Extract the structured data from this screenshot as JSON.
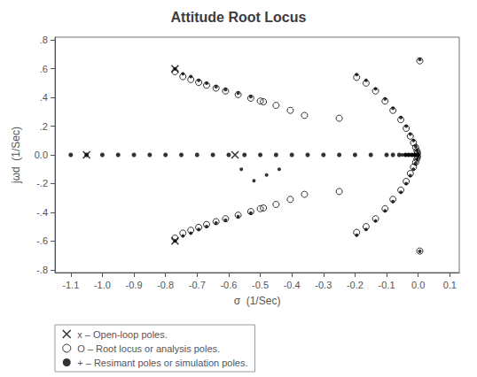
{
  "chart_data": {
    "type": "scatter",
    "title": "Attitude Root Locus",
    "xlabel": "σ  (1/Sec)",
    "ylabel": "jωd  (1/Sec)",
    "xlim": [
      -1.15,
      0.13
    ],
    "ylim": [
      -0.82,
      0.82
    ],
    "xticks": [
      -1.1,
      {
        "value": -1.0,
        "label": "-1.0"
      },
      -0.9,
      -0.8,
      -0.7,
      -0.6,
      -0.5,
      -0.4,
      -0.3,
      -0.2,
      -0.1,
      {
        "value": 0.0,
        "label": "0.0"
      },
      0.1
    ],
    "yticks": [
      {
        "value": -0.8,
        "label": "-.8"
      },
      {
        "value": -0.6,
        "label": "-.6"
      },
      {
        "value": -0.4,
        "label": "-.4"
      },
      {
        "value": -0.2,
        "label": "-.2"
      },
      {
        "value": 0.0,
        "label": "0.0"
      },
      {
        "value": 0.2,
        "label": ".2"
      },
      {
        "value": 0.4,
        "label": ".4"
      },
      {
        "value": 0.6,
        "label": ".6"
      },
      {
        "value": 0.8,
        "label": ".8"
      }
    ],
    "grid": false,
    "legend": "lower left",
    "series": [
      {
        "name": "x – Open-loop poles.",
        "marker": "x",
        "color": "#000000",
        "x": [
          -1.05,
          -0.77,
          -0.58,
          -0.77
        ],
        "values": [
          0.0,
          0.6,
          0.0,
          -0.6
        ]
      },
      {
        "name": "O – Root locus or analysis poles.",
        "marker": "open_circle",
        "color": "#000000",
        "x": [
          -0.77,
          -0.745,
          -0.72,
          -0.695,
          -0.67,
          -0.64,
          -0.61,
          -0.57,
          -0.53,
          -0.49,
          -0.45,
          -0.405,
          -0.36,
          -0.5,
          -0.25,
          -0.77,
          -0.745,
          -0.72,
          -0.695,
          -0.67,
          -0.64,
          -0.61,
          -0.57,
          -0.53,
          -0.49,
          -0.45,
          -0.405,
          -0.36,
          -0.5,
          -0.25,
          -0.195,
          -0.165,
          -0.135,
          -0.105,
          -0.08,
          -0.055,
          -0.038,
          -0.025,
          -0.015,
          -0.008,
          -0.004,
          -0.002,
          0.005,
          -0.195,
          -0.165,
          -0.135,
          -0.105,
          -0.08,
          -0.055,
          -0.038,
          -0.025,
          -0.015,
          -0.008,
          -0.004,
          -0.002,
          0.005
        ],
        "values": [
          0.58,
          0.545,
          0.525,
          0.505,
          0.485,
          0.465,
          0.445,
          0.42,
          0.395,
          0.37,
          0.345,
          0.31,
          0.275,
          0.375,
          0.255,
          -0.58,
          -0.545,
          -0.525,
          -0.505,
          -0.485,
          -0.465,
          -0.445,
          -0.42,
          -0.395,
          -0.37,
          -0.345,
          -0.31,
          -0.275,
          -0.375,
          -0.255,
          0.54,
          0.5,
          0.445,
          0.375,
          0.31,
          0.245,
          0.185,
          0.13,
          0.085,
          0.052,
          0.028,
          0.012,
          0.655,
          -0.54,
          -0.5,
          -0.445,
          -0.375,
          -0.31,
          -0.245,
          -0.185,
          -0.13,
          -0.085,
          -0.052,
          -0.028,
          -0.012,
          -0.67
        ]
      },
      {
        "name": "+ – Resimant poles or simulation poles.",
        "marker": "dot",
        "color": "#000000",
        "x": [
          -0.05,
          -0.04,
          -0.03,
          -0.02,
          -0.015,
          -0.01,
          -0.008,
          -0.005,
          -0.003,
          -0.001,
          0.0,
          -0.195,
          -0.165,
          -0.135,
          -0.105,
          -0.08,
          -0.055,
          -0.038,
          -0.025,
          -0.015,
          -0.008,
          -0.004,
          -0.001,
          -0.77,
          -0.745,
          -0.72,
          -0.695,
          -0.67,
          -0.64,
          -0.61,
          -0.57,
          -0.53,
          0.005,
          -0.195,
          -0.165,
          -0.135,
          -0.105,
          -0.08,
          -0.055,
          -0.038,
          -0.025,
          -0.015,
          -0.008,
          -0.004,
          -0.001,
          -0.77,
          -0.745,
          -0.72,
          -0.695,
          -0.67,
          -0.64,
          -0.61,
          -0.57,
          -0.53,
          0.005,
          -0.56,
          -0.52,
          -0.48,
          -0.44
        ],
        "values": [
          0.0,
          0.0,
          0.0,
          0.0,
          0.0,
          0.0,
          0.0,
          0.0,
          0.0,
          0.0,
          0.0,
          0.56,
          0.52,
          0.46,
          0.39,
          0.325,
          0.26,
          0.2,
          0.145,
          0.1,
          0.06,
          0.032,
          0.014,
          0.6,
          0.565,
          0.545,
          0.52,
          0.5,
          0.475,
          0.455,
          0.43,
          0.405,
          0.665,
          -0.56,
          -0.52,
          -0.46,
          -0.39,
          -0.325,
          -0.26,
          -0.2,
          -0.145,
          -0.1,
          -0.06,
          -0.032,
          -0.014,
          -0.6,
          -0.565,
          -0.545,
          -0.52,
          -0.5,
          -0.475,
          -0.455,
          -0.43,
          -0.405,
          -0.672,
          -0.1,
          -0.18,
          -0.14,
          -0.1
        ]
      },
      {
        "marker": "filled_circle",
        "color": "#000000",
        "x": [
          -1.1,
          -1.05,
          -1.0,
          -0.95,
          -0.9,
          -0.85,
          -0.8,
          -0.75,
          -0.7,
          -0.65,
          -0.6,
          -0.55,
          -0.5,
          -0.45,
          -0.4,
          -0.35,
          -0.3,
          -0.25,
          -0.2,
          -0.15,
          -0.1,
          -0.08,
          -0.06,
          -0.04,
          -0.03,
          -0.02,
          -0.01,
          0.0
        ],
        "values": [
          0.0,
          0.0,
          0.0,
          0.0,
          0.0,
          0.0,
          0.0,
          0.0,
          0.0,
          0.0,
          0.0,
          0.0,
          0.0,
          0.0,
          0.0,
          0.0,
          0.0,
          0.0,
          0.0,
          0.0,
          0.0,
          0.0,
          0.0,
          0.0,
          0.0,
          0.0,
          0.0,
          0.0
        ]
      }
    ]
  }
}
